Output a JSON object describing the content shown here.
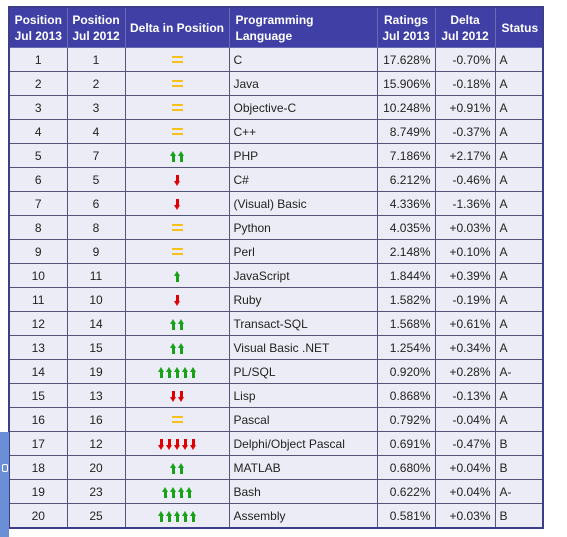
{
  "table": {
    "headers": {
      "pos2013_line1": "Position",
      "pos2013_line2": "Jul 2013",
      "pos2012_line1": "Position",
      "pos2012_line2": "Jul 2012",
      "delta_pos": "Delta in Position",
      "language": "Programming Language",
      "ratings_line1": "Ratings",
      "ratings_line2": "Jul 2013",
      "delta_line1": "Delta",
      "delta_line2": "Jul 2012",
      "status": "Status"
    },
    "rows": [
      {
        "pos2013": "1",
        "pos2012": "1",
        "delta_icon": "equal",
        "delta_count": 0,
        "language": "C",
        "rating": "17.628%",
        "delta": "-0.70%",
        "status": "A"
      },
      {
        "pos2013": "2",
        "pos2012": "2",
        "delta_icon": "equal",
        "delta_count": 0,
        "language": "Java",
        "rating": "15.906%",
        "delta": "-0.18%",
        "status": "A"
      },
      {
        "pos2013": "3",
        "pos2012": "3",
        "delta_icon": "equal",
        "delta_count": 0,
        "language": "Objective-C",
        "rating": "10.248%",
        "delta": "+0.91%",
        "status": "A"
      },
      {
        "pos2013": "4",
        "pos2012": "4",
        "delta_icon": "equal",
        "delta_count": 0,
        "language": "C++",
        "rating": "8.749%",
        "delta": "-0.37%",
        "status": "A"
      },
      {
        "pos2013": "5",
        "pos2012": "7",
        "delta_icon": "up",
        "delta_count": 2,
        "language": "PHP",
        "rating": "7.186%",
        "delta": "+2.17%",
        "status": "A"
      },
      {
        "pos2013": "6",
        "pos2012": "5",
        "delta_icon": "down",
        "delta_count": 1,
        "language": "C#",
        "rating": "6.212%",
        "delta": "-0.46%",
        "status": "A"
      },
      {
        "pos2013": "7",
        "pos2012": "6",
        "delta_icon": "down",
        "delta_count": 1,
        "language": "(Visual) Basic",
        "rating": "4.336%",
        "delta": "-1.36%",
        "status": "A"
      },
      {
        "pos2013": "8",
        "pos2012": "8",
        "delta_icon": "equal",
        "delta_count": 0,
        "language": "Python",
        "rating": "4.035%",
        "delta": "+0.03%",
        "status": "A"
      },
      {
        "pos2013": "9",
        "pos2012": "9",
        "delta_icon": "equal",
        "delta_count": 0,
        "language": "Perl",
        "rating": "2.148%",
        "delta": "+0.10%",
        "status": "A"
      },
      {
        "pos2013": "10",
        "pos2012": "11",
        "delta_icon": "up",
        "delta_count": 1,
        "language": "JavaScript",
        "rating": "1.844%",
        "delta": "+0.39%",
        "status": "A"
      },
      {
        "pos2013": "11",
        "pos2012": "10",
        "delta_icon": "down",
        "delta_count": 1,
        "language": "Ruby",
        "rating": "1.582%",
        "delta": "-0.19%",
        "status": "A"
      },
      {
        "pos2013": "12",
        "pos2012": "14",
        "delta_icon": "up",
        "delta_count": 2,
        "language": "Transact-SQL",
        "rating": "1.568%",
        "delta": "+0.61%",
        "status": "A"
      },
      {
        "pos2013": "13",
        "pos2012": "15",
        "delta_icon": "up",
        "delta_count": 2,
        "language": "Visual Basic .NET",
        "rating": "1.254%",
        "delta": "+0.34%",
        "status": "A"
      },
      {
        "pos2013": "14",
        "pos2012": "19",
        "delta_icon": "up",
        "delta_count": 5,
        "language": "PL/SQL",
        "rating": "0.920%",
        "delta": "+0.28%",
        "status": "A-"
      },
      {
        "pos2013": "15",
        "pos2012": "13",
        "delta_icon": "down",
        "delta_count": 2,
        "language": "Lisp",
        "rating": "0.868%",
        "delta": "-0.13%",
        "status": "A"
      },
      {
        "pos2013": "16",
        "pos2012": "16",
        "delta_icon": "equal",
        "delta_count": 0,
        "language": "Pascal",
        "rating": "0.792%",
        "delta": "-0.04%",
        "status": "A"
      },
      {
        "pos2013": "17",
        "pos2012": "12",
        "delta_icon": "down",
        "delta_count": 5,
        "language": "Delphi/Object Pascal",
        "rating": "0.691%",
        "delta": "-0.47%",
        "status": "B"
      },
      {
        "pos2013": "18",
        "pos2012": "20",
        "delta_icon": "up",
        "delta_count": 2,
        "language": "MATLAB",
        "rating": "0.680%",
        "delta": "+0.04%",
        "status": "B"
      },
      {
        "pos2013": "19",
        "pos2012": "23",
        "delta_icon": "up",
        "delta_count": 4,
        "language": "Bash",
        "rating": "0.622%",
        "delta": "+0.04%",
        "status": "A-"
      },
      {
        "pos2013": "20",
        "pos2012": "25",
        "delta_icon": "up",
        "delta_count": 5,
        "language": "Assembly",
        "rating": "0.581%",
        "delta": "+0.03%",
        "status": "B"
      }
    ]
  },
  "colors": {
    "header_bg": "#3f3fa5",
    "row_bg": "#ececf6",
    "arrow_up": "#17a317",
    "arrow_down": "#e00000",
    "equal_sign": "#f2c21b"
  }
}
